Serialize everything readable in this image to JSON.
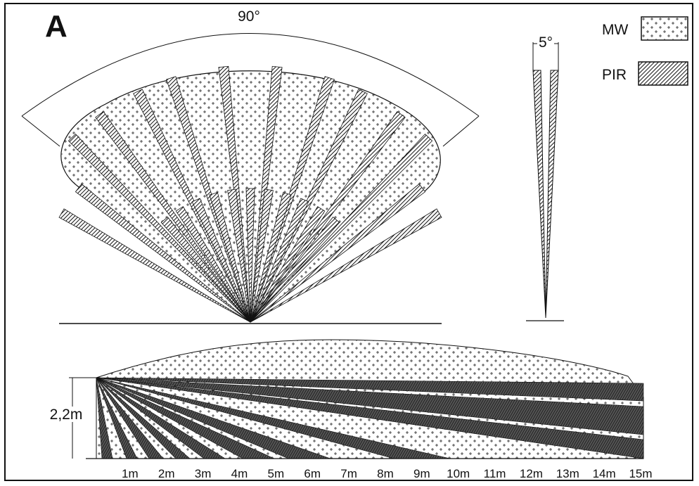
{
  "panel_label": "A",
  "top_view": {
    "angle_label": "90°"
  },
  "side_beam": {
    "angle_label": "5°"
  },
  "legend": [
    {
      "label": "MW",
      "pattern": "dots"
    },
    {
      "label": "PIR",
      "pattern": "hatch"
    }
  ],
  "side_view": {
    "height_label": "2,2m",
    "distance_labels": [
      "1m",
      "2m",
      "3m",
      "4m",
      "5m",
      "6m",
      "7m",
      "8m",
      "9m",
      "10m",
      "11m",
      "12m",
      "13m",
      "14m",
      "15m"
    ]
  },
  "colors": {
    "ink": "#111111",
    "pir_fill": "#444444",
    "background": "#ffffff"
  }
}
